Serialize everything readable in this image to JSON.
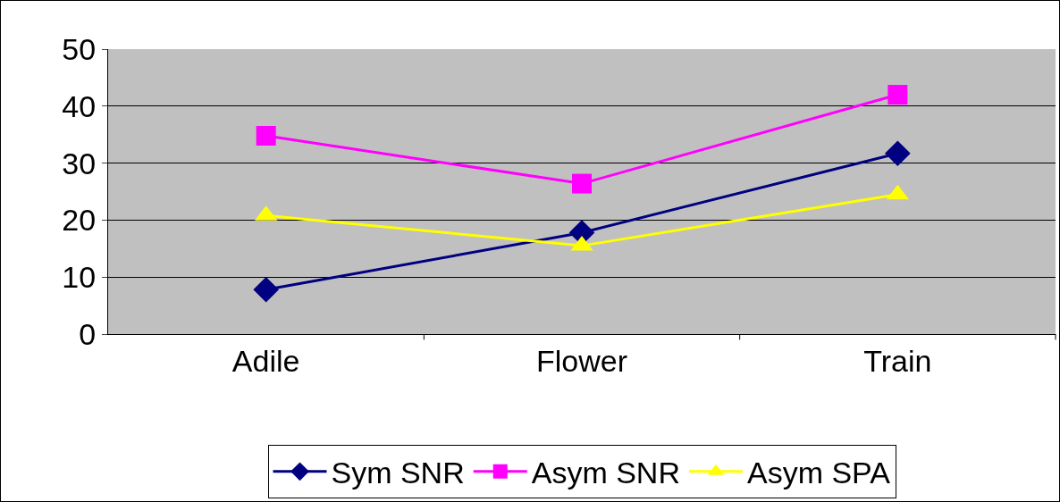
{
  "chart_data": {
    "type": "line",
    "categories": [
      "Adile",
      "Flower",
      "Train"
    ],
    "series": [
      {
        "name": "Sym SNR",
        "color": "#000080",
        "marker": "diamond",
        "values": [
          7.8,
          17.8,
          31.7
        ]
      },
      {
        "name": "Asym SNR",
        "color": "#ff00ff",
        "marker": "square",
        "values": [
          34.8,
          26.4,
          42.0
        ]
      },
      {
        "name": "Asym SPA",
        "color": "#ffff00",
        "marker": "triangle",
        "values": [
          20.8,
          15.5,
          24.5
        ]
      }
    ],
    "ylim": [
      0,
      50
    ],
    "yticks": [
      0,
      10,
      20,
      30,
      40,
      50
    ],
    "grid": "y",
    "legend": "bottom",
    "line_style": "solid"
  }
}
